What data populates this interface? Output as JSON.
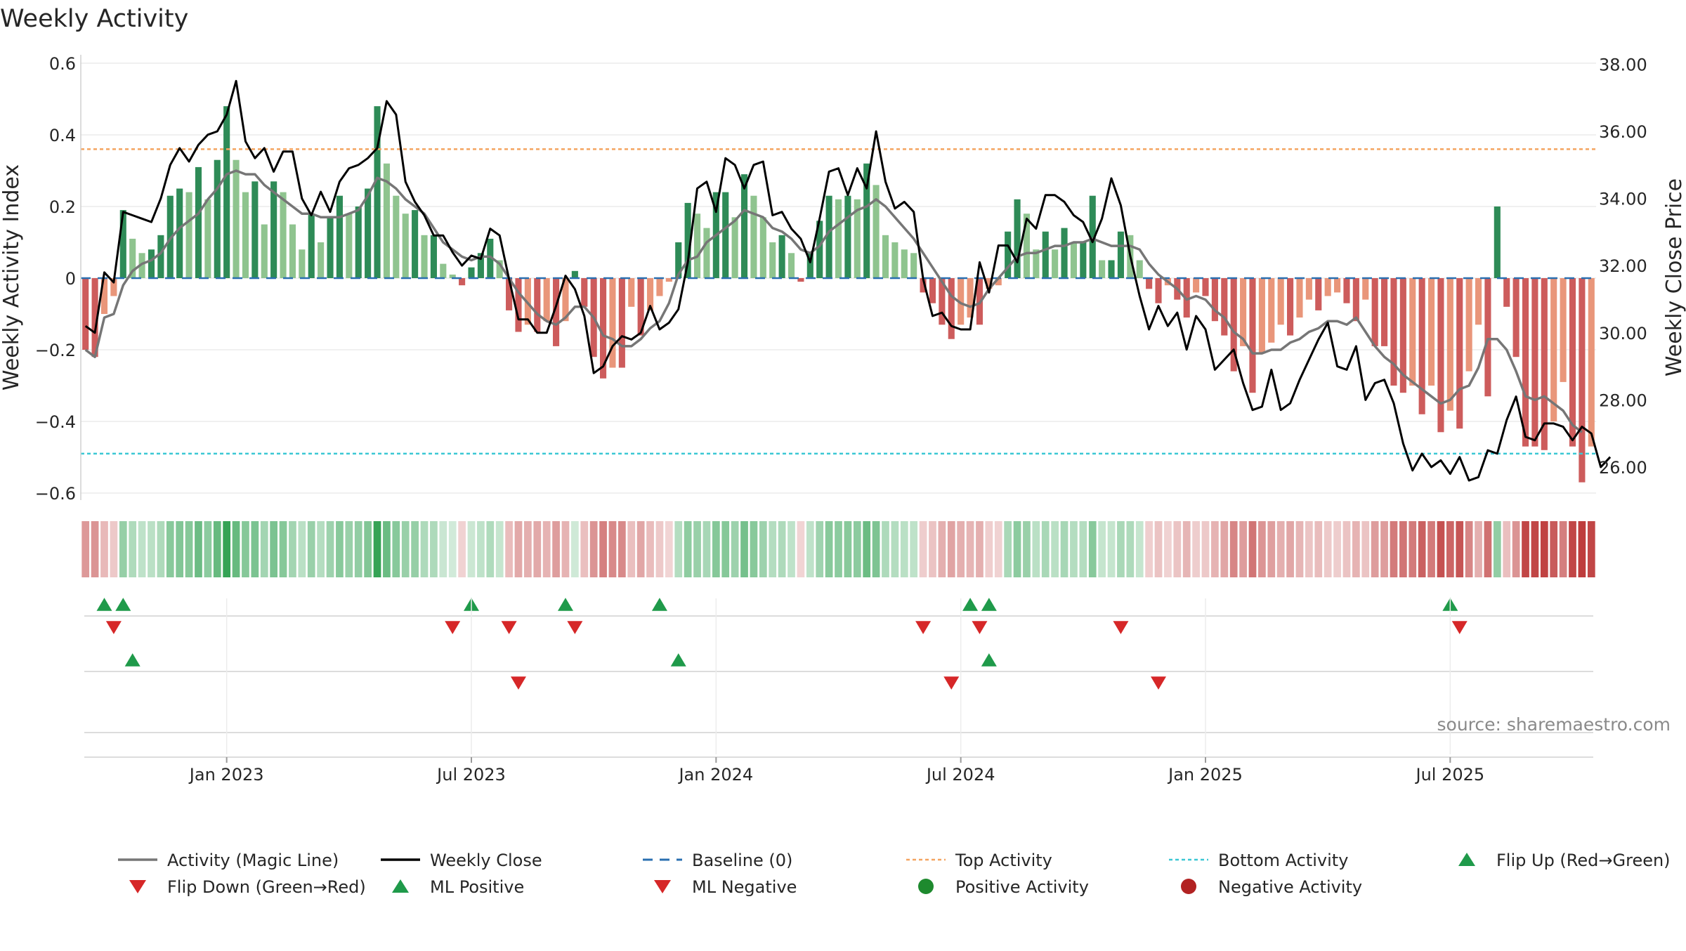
{
  "chart_data": {
    "type": "bar",
    "title": "Weekly Activity",
    "ylabel": "Weekly Activity Index",
    "y2label": "Weekly Close Price",
    "ylim": [
      -0.6,
      0.6
    ],
    "y2lim": [
      25.5,
      38.0
    ],
    "yticks": [
      {
        "v": 0.6,
        "label": "0.6"
      },
      {
        "v": 0.4,
        "label": "0.4"
      },
      {
        "v": 0.2,
        "label": "0.2"
      },
      {
        "v": 0,
        "label": "0"
      },
      {
        "v": -0.2,
        "label": "−0.2"
      },
      {
        "v": -0.4,
        "label": "−0.4"
      },
      {
        "v": -0.6,
        "label": "−0.6"
      }
    ],
    "y2ticks": [
      {
        "v": 38,
        "label": "38.00"
      },
      {
        "v": 36,
        "label": "36.00"
      },
      {
        "v": 34,
        "label": "34.00"
      },
      {
        "v": 32,
        "label": "32.00"
      },
      {
        "v": 30,
        "label": "30.00"
      },
      {
        "v": 28,
        "label": "28.00"
      },
      {
        "v": 26,
        "label": "26.00"
      }
    ],
    "xticks": [
      {
        "week": 15,
        "label": "Jan 2023"
      },
      {
        "week": 41,
        "label": "Jul 2023"
      },
      {
        "week": 67,
        "label": "Jan 2024"
      },
      {
        "week": 93,
        "label": "Jul 2024"
      },
      {
        "week": 119,
        "label": "Jan 2025"
      },
      {
        "week": 145,
        "label": "Jul 2025"
      }
    ],
    "top_activity": 0.36,
    "bottom_activity": -0.49,
    "activity": [
      -0.2,
      -0.22,
      -0.1,
      -0.05,
      0.19,
      0.11,
      0.07,
      0.08,
      0.12,
      0.23,
      0.25,
      0.24,
      0.31,
      0.22,
      0.33,
      0.48,
      0.33,
      0.24,
      0.27,
      0.15,
      0.27,
      0.24,
      0.15,
      0.08,
      0.18,
      0.1,
      0.17,
      0.23,
      0.18,
      0.2,
      0.25,
      0.48,
      0.32,
      0.23,
      0.18,
      0.19,
      0.12,
      0.12,
      0.04,
      0.01,
      -0.02,
      0.03,
      0.07,
      0.11,
      0.05,
      -0.09,
      -0.15,
      -0.13,
      -0.15,
      -0.12,
      -0.19,
      -0.12,
      0.02,
      -0.08,
      -0.22,
      -0.28,
      -0.25,
      -0.25,
      -0.08,
      -0.16,
      -0.09,
      -0.05,
      -0.01,
      0.1,
      0.21,
      0.18,
      0.14,
      0.24,
      0.24,
      0.17,
      0.29,
      0.23,
      0.17,
      0.1,
      0.12,
      0.07,
      -0.01,
      0.07,
      0.16,
      0.23,
      0.22,
      0.23,
      0.22,
      0.32,
      0.26,
      0.12,
      0.1,
      0.08,
      0.07,
      -0.04,
      -0.07,
      -0.13,
      -0.17,
      -0.13,
      -0.11,
      -0.13,
      -0.03,
      -0.02,
      0.13,
      0.22,
      0.18,
      0.08,
      0.13,
      0.08,
      0.14,
      0.1,
      0.1,
      0.23,
      0.05,
      0.05,
      0.13,
      0.12,
      0.05,
      -0.03,
      -0.07,
      -0.02,
      -0.06,
      -0.11,
      -0.04,
      -0.05,
      -0.12,
      -0.16,
      -0.26,
      -0.19,
      -0.32,
      -0.21,
      -0.18,
      -0.13,
      -0.16,
      -0.11,
      -0.06,
      -0.09,
      -0.05,
      -0.04,
      -0.07,
      -0.12,
      -0.06,
      -0.19,
      -0.19,
      -0.3,
      -0.32,
      -0.3,
      -0.38,
      -0.3,
      -0.43,
      -0.37,
      -0.42,
      -0.26,
      -0.13,
      -0.33,
      0.2,
      -0.08,
      -0.22,
      -0.47,
      -0.47,
      -0.48,
      -0.4,
      -0.29,
      -0.47,
      -0.57,
      -0.47
    ],
    "magic_line": [
      -0.2,
      -0.22,
      -0.11,
      -0.1,
      -0.02,
      0.02,
      0.04,
      0.05,
      0.07,
      0.11,
      0.14,
      0.16,
      0.18,
      0.22,
      0.25,
      0.29,
      0.3,
      0.29,
      0.29,
      0.26,
      0.24,
      0.22,
      0.2,
      0.18,
      0.18,
      0.17,
      0.17,
      0.17,
      0.18,
      0.19,
      0.23,
      0.28,
      0.27,
      0.25,
      0.22,
      0.2,
      0.18,
      0.14,
      0.1,
      0.08,
      0.06,
      0.05,
      0.06,
      0.06,
      0.04,
      0.0,
      -0.04,
      -0.07,
      -0.1,
      -0.12,
      -0.13,
      -0.11,
      -0.08,
      -0.08,
      -0.11,
      -0.16,
      -0.17,
      -0.19,
      -0.19,
      -0.17,
      -0.14,
      -0.12,
      -0.07,
      0.01,
      0.05,
      0.06,
      0.1,
      0.12,
      0.14,
      0.16,
      0.19,
      0.18,
      0.17,
      0.14,
      0.13,
      0.11,
      0.08,
      0.07,
      0.09,
      0.13,
      0.15,
      0.17,
      0.19,
      0.2,
      0.22,
      0.2,
      0.17,
      0.14,
      0.11,
      0.07,
      0.03,
      -0.01,
      -0.05,
      -0.07,
      -0.08,
      -0.07,
      -0.03,
      0.0,
      0.03,
      0.06,
      0.07,
      0.07,
      0.08,
      0.09,
      0.09,
      0.1,
      0.1,
      0.11,
      0.1,
      0.09,
      0.09,
      0.09,
      0.08,
      0.04,
      0.01,
      -0.01,
      -0.03,
      -0.06,
      -0.05,
      -0.06,
      -0.09,
      -0.11,
      -0.15,
      -0.17,
      -0.21,
      -0.21,
      -0.2,
      -0.2,
      -0.18,
      -0.17,
      -0.15,
      -0.14,
      -0.12,
      -0.12,
      -0.13,
      -0.11,
      -0.15,
      -0.19,
      -0.22,
      -0.24,
      -0.27,
      -0.29,
      -0.31,
      -0.33,
      -0.35,
      -0.34,
      -0.31,
      -0.3,
      -0.25,
      -0.17,
      -0.17,
      -0.2,
      -0.26,
      -0.33,
      -0.34,
      -0.33,
      -0.35,
      -0.37,
      -0.41,
      -0.43
    ],
    "weekly_close": [
      30.2,
      30.0,
      31.8,
      31.5,
      33.6,
      33.5,
      33.4,
      33.3,
      34.0,
      35.0,
      35.5,
      35.1,
      35.6,
      35.9,
      36.0,
      36.5,
      37.5,
      35.7,
      35.2,
      35.5,
      34.8,
      35.4,
      35.4,
      34.0,
      33.5,
      34.2,
      33.6,
      34.5,
      34.9,
      35.0,
      35.2,
      35.5,
      36.9,
      36.5,
      34.5,
      33.9,
      33.5,
      32.9,
      32.9,
      32.4,
      32.0,
      32.3,
      32.2,
      33.1,
      32.9,
      31.6,
      30.4,
      30.4,
      30.0,
      30.0,
      30.8,
      31.7,
      31.3,
      30.5,
      28.8,
      29.0,
      29.6,
      29.9,
      29.8,
      30.0,
      30.8,
      30.1,
      30.3,
      30.7,
      32.1,
      34.3,
      34.5,
      33.6,
      35.2,
      35.0,
      34.3,
      35.0,
      35.1,
      33.5,
      33.6,
      33.1,
      32.8,
      32.1,
      33.4,
      34.8,
      34.9,
      34.1,
      34.9,
      34.3,
      36.0,
      34.5,
      33.7,
      33.9,
      33.6,
      31.6,
      30.5,
      30.6,
      30.2,
      30.1,
      30.1,
      32.1,
      31.2,
      32.6,
      32.6,
      32.1,
      33.4,
      33.1,
      34.1,
      34.1,
      33.9,
      33.5,
      33.3,
      32.7,
      33.4,
      34.6,
      33.8,
      32.3,
      31.1,
      30.1,
      30.8,
      30.2,
      30.6,
      29.5,
      30.5,
      30.1,
      28.9,
      29.2,
      29.5,
      28.5,
      27.7,
      27.8,
      28.9,
      27.7,
      27.9,
      28.6,
      29.2,
      29.8,
      30.3,
      29.0,
      28.9,
      29.6,
      28.0,
      28.5,
      28.6,
      27.9,
      26.7,
      25.9,
      26.4,
      26.0,
      26.2,
      25.8,
      26.3,
      25.6,
      25.7,
      26.5,
      26.4,
      27.4,
      28.1,
      26.9,
      26.8,
      27.3,
      27.3,
      27.2,
      26.8,
      27.2,
      27.0,
      26.0,
      26.3
    ],
    "flip_up_weeks": [
      2,
      4,
      41,
      51,
      61,
      94,
      96,
      145
    ],
    "flip_down_weeks": [
      3,
      39,
      45,
      52,
      89,
      95,
      110,
      146
    ],
    "ml_positive_weeks": [
      5,
      63,
      96
    ],
    "ml_negative_weeks": [
      46,
      92,
      114
    ],
    "legend": [
      {
        "label": "Activity (Magic Line)",
        "kind": "line",
        "color": "#767676"
      },
      {
        "label": "Weekly Close",
        "kind": "line",
        "color": "#000000"
      },
      {
        "label": "Baseline (0)",
        "kind": "dash",
        "color": "#2a6fb0"
      },
      {
        "label": "Top Activity",
        "kind": "dot",
        "color": "#f4a460"
      },
      {
        "label": "Bottom Activity",
        "kind": "dot",
        "color": "#3bc7d4"
      },
      {
        "label": "Flip Up (Red→Green)",
        "kind": "tri-up",
        "color": "#1f9a4a"
      },
      {
        "label": "Flip Down (Green→Red)",
        "kind": "tri-down",
        "color": "#d62728"
      },
      {
        "label": "ML Positive",
        "kind": "tri-up",
        "color": "#1f9a4a"
      },
      {
        "label": "ML Negative",
        "kind": "tri-down",
        "color": "#d62728"
      },
      {
        "label": "Positive Activity",
        "kind": "circle",
        "color": "#1e8a2e"
      },
      {
        "label": "Negative Activity",
        "kind": "circle",
        "color": "#b22222"
      }
    ],
    "source": "source: sharemaestro.com",
    "colors": {
      "pos_strong": "#2e8b57",
      "pos_light": "#8fc48f",
      "neg_strong": "#cd5c5c",
      "neg_light": "#e9967a"
    }
  }
}
